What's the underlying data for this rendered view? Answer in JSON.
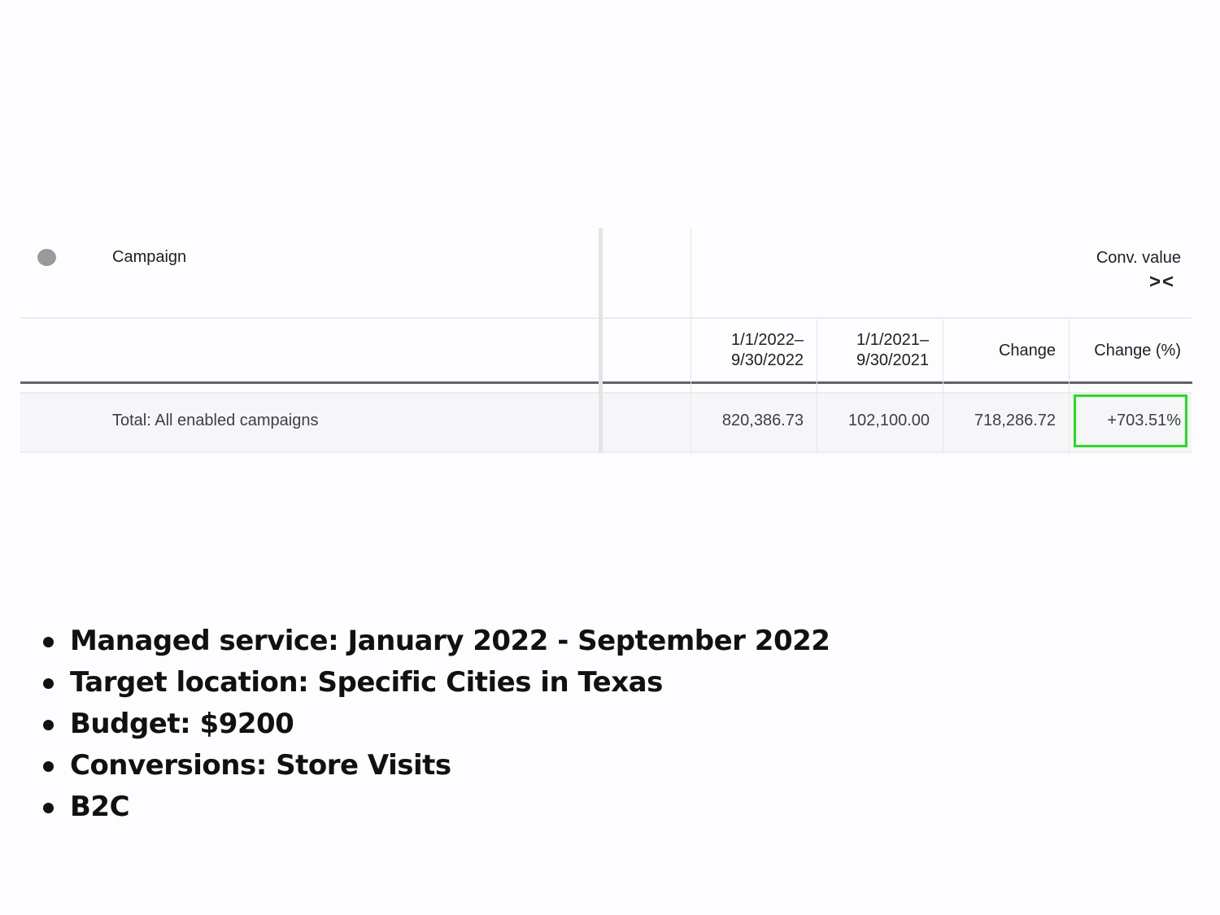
{
  "table": {
    "campaign_header": "Campaign",
    "metric_header": "Conv. value",
    "collapse_icon": "collapse-arrows-icon",
    "columns": [
      "1/1/2022–\n9/30/2022",
      "1/1/2021–\n9/30/2021",
      "Change",
      "Change (%)"
    ],
    "columns_lines": [
      [
        "1/1/2022–",
        "9/30/2022"
      ],
      [
        "1/1/2021–",
        "9/30/2021"
      ]
    ],
    "total_row": {
      "label": "Total: All enabled campaigns",
      "values": [
        "820,386.73",
        "102,100.00",
        "718,286.72",
        "+703.51%"
      ]
    },
    "highlight_color": "#22e01e"
  },
  "bullets": [
    "Managed service: January 2022 - September 2022",
    "Target location: Specific Cities in Texas",
    "Budget: $9200",
    "Conversions: Store Visits",
    "B2C"
  ]
}
